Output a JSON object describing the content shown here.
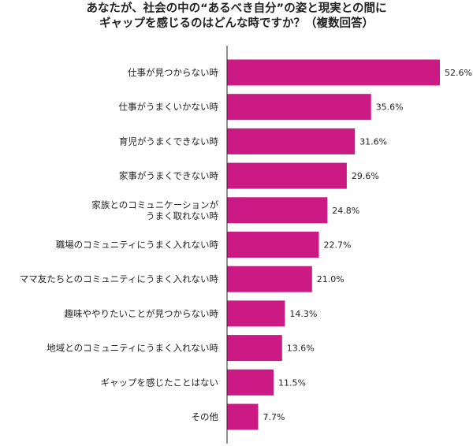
{
  "title": {
    "line1": "あなたが、社会の中の“あるべき自分”の姿と現実との間に",
    "line2": "ギャップを感じるのはどんな時ですか？（複数回答）"
  },
  "colors": {
    "bar": "#cc1a84",
    "axis": "#222222"
  },
  "chart_data": {
    "type": "bar",
    "orientation": "horizontal",
    "categories": [
      [
        "仕事が見つからない時"
      ],
      [
        "仕事がうまくいかない時"
      ],
      [
        "育児がうまくできない時"
      ],
      [
        "家事がうまくできない時"
      ],
      [
        "家族とのコミュニケーションが",
        "うまく取れない時"
      ],
      [
        "職場のコミュニティにうまく入れない時"
      ],
      [
        "ママ友たちとのコミュニティにうまく入れない時"
      ],
      [
        "趣味ややりたいことが見つからない時"
      ],
      [
        "地域とのコミュニティにうまく入れない時"
      ],
      [
        "ギャップを感じたことはない"
      ],
      [
        "その他"
      ]
    ],
    "values": [
      52.6,
      35.6,
      31.6,
      29.6,
      24.8,
      22.7,
      21.0,
      14.3,
      13.6,
      11.5,
      7.7
    ],
    "value_labels": [
      "52.6%",
      "35.6%",
      "31.6%",
      "29.6%",
      "24.8%",
      "22.7%",
      "21.0%",
      "14.3%",
      "13.6%",
      "11.5%",
      "7.7%"
    ],
    "unit": "%",
    "xlim": [
      0,
      52.6
    ],
    "grid": false,
    "legend": "none"
  }
}
